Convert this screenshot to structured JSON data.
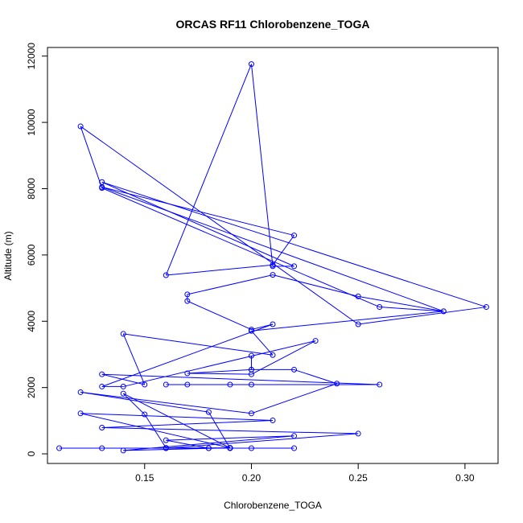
{
  "chart_data": {
    "type": "line",
    "title": "ORCAS RF11 Chlorobenzene_TOGA",
    "xlabel": "Chlorobenzene_TOGA",
    "ylabel": "Altitude (m)",
    "xlim": [
      0.1045,
      0.3155
    ],
    "ylim": [
      -290,
      12260
    ],
    "x_ticks": [
      0.15,
      0.2,
      0.25,
      0.3
    ],
    "x_tick_labels": [
      "0.15",
      "0.20",
      "0.25",
      "0.30"
    ],
    "y_ticks": [
      0,
      2000,
      4000,
      6000,
      8000,
      10000,
      12000
    ],
    "y_tick_labels": [
      "0",
      "2000",
      "4000",
      "6000",
      "8000",
      "10000",
      "12000"
    ],
    "series_color": "#0000ff",
    "marker": "open-circle",
    "grid": false,
    "series": [
      {
        "x": [
          0.11,
          0.18,
          0.22,
          0.2,
          0.16,
          0.19,
          0.13,
          0.18,
          0.16,
          0.22,
          0.14,
          0.19,
          0.12,
          0.21,
          0.13,
          0.25,
          0.16,
          0.19,
          0.14,
          0.15,
          0.16,
          0.19,
          0.18,
          0.12,
          0.2,
          0.24,
          0.22,
          0.2,
          0.2,
          0.2,
          0.17,
          0.2,
          0.23,
          0.14,
          0.13,
          0.21,
          0.2,
          0.17,
          0.17,
          0.21,
          0.25,
          0.29,
          0.13,
          0.22,
          0.21,
          0.16,
          0.2,
          0.21,
          0.22,
          0.13,
          0.31,
          0.25,
          0.12,
          0.13,
          0.26,
          0.29,
          0.2,
          0.21,
          0.14,
          0.15,
          0.13,
          0.26,
          0.2,
          0.19,
          0.17,
          0.16
        ],
        "y": [
          170,
          170,
          170,
          170,
          170,
          170,
          170,
          170,
          410,
          540,
          100,
          180,
          1220,
          1010,
          790,
          610,
          170,
          180,
          1820,
          1190,
          180,
          170,
          1260,
          1860,
          1220,
          2120,
          2540,
          2540,
          2960,
          2540,
          2430,
          2400,
          3410,
          2030,
          2030,
          3910,
          3750,
          4610,
          4810,
          5400,
          4750,
          4300,
          8050,
          6590,
          5700,
          5390,
          11760,
          5660,
          5660,
          8200,
          4430,
          3910,
          9880,
          8020,
          4430,
          4300,
          3710,
          2980,
          3620,
          2090,
          2400,
          2090,
          2090,
          2090,
          2090,
          2090
        ]
      }
    ]
  }
}
